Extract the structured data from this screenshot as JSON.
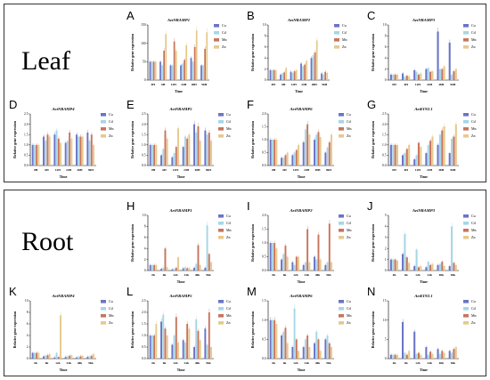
{
  "sections": [
    {
      "label": "Leaf"
    },
    {
      "label": "Root"
    }
  ],
  "legend": {
    "items": [
      "Cu",
      "Cd",
      "Mn",
      "Zn"
    ],
    "colors": [
      "#6a74c6",
      "#a6d6e6",
      "#c8755c",
      "#e6c98e"
    ]
  },
  "chart_data": [
    {
      "letter": "A",
      "type": "bar",
      "title": "AetNRAMP1",
      "ylabel": "Relative gene expression",
      "xlabel": "Time",
      "categories": [
        "0H",
        "6H",
        "12H",
        "24H",
        "48H",
        "96H"
      ],
      "ylim": [
        0,
        150
      ],
      "yticks": [
        0,
        50,
        100,
        150
      ],
      "series": [
        {
          "name": "Cu",
          "values": [
            50,
            50,
            40,
            40,
            60,
            40
          ]
        },
        {
          "name": "Cd",
          "values": [
            50,
            40,
            40,
            45,
            50,
            40
          ]
        },
        {
          "name": "Mn",
          "values": [
            50,
            80,
            105,
            55,
            90,
            85
          ]
        },
        {
          "name": "Zn",
          "values": [
            50,
            125,
            80,
            95,
            135,
            130
          ]
        }
      ]
    },
    {
      "letter": "B",
      "type": "bar",
      "title": "AetNRAMP2",
      "ylabel": "Relative gene expression",
      "xlabel": "Time",
      "categories": [
        "0H",
        "6H",
        "12H",
        "24H",
        "48H",
        "96H"
      ],
      "ylim": [
        0,
        10
      ],
      "yticks": [
        0,
        2,
        4,
        6,
        8,
        10
      ],
      "series": [
        {
          "name": "Cu",
          "values": [
            1.8,
            1.0,
            1.5,
            3.0,
            4.0,
            1.2
          ]
        },
        {
          "name": "Cd",
          "values": [
            1.8,
            1.2,
            1.3,
            2.5,
            4.5,
            1.0
          ]
        },
        {
          "name": "Mn",
          "values": [
            1.8,
            1.4,
            1.6,
            2.8,
            5.0,
            1.5
          ]
        },
        {
          "name": "Zn",
          "values": [
            1.8,
            2.2,
            1.8,
            3.5,
            7.2,
            1.3
          ]
        }
      ]
    },
    {
      "letter": "C",
      "type": "bar",
      "title": "AetNRAMP3",
      "ylabel": "Relative gene expression",
      "xlabel": "Time",
      "categories": [
        "0H",
        "6H",
        "12H",
        "24H",
        "48H",
        "96H"
      ],
      "ylim": [
        0,
        10
      ],
      "yticks": [
        0,
        2,
        4,
        6,
        8,
        10
      ],
      "series": [
        {
          "name": "Cu",
          "values": [
            1.0,
            1.2,
            1.8,
            2.0,
            8.8,
            6.8
          ]
        },
        {
          "name": "Cd",
          "values": [
            1.0,
            0.6,
            1.5,
            2.2,
            2.0,
            1.0
          ]
        },
        {
          "name": "Mn",
          "values": [
            1.0,
            0.8,
            1.0,
            1.5,
            2.0,
            1.6
          ]
        },
        {
          "name": "Zn",
          "values": [
            1.0,
            0.7,
            1.2,
            1.6,
            2.5,
            2.0
          ]
        }
      ]
    },
    {
      "letter": "D",
      "type": "bar",
      "title": "AetNRAMP4",
      "ylabel": "Relative gene expression",
      "xlabel": "Time",
      "categories": [
        "0H",
        "6H",
        "12H",
        "24H",
        "48H",
        "96H"
      ],
      "ylim": [
        0,
        2.5
      ],
      "yticks": [
        0.0,
        0.5,
        1.0,
        1.5,
        2.0,
        2.5
      ],
      "series": [
        {
          "name": "Cu",
          "values": [
            1.0,
            1.4,
            1.5,
            1.1,
            1.5,
            1.6
          ]
        },
        {
          "name": "Cd",
          "values": [
            1.0,
            1.2,
            1.7,
            1.2,
            1.4,
            1.2
          ]
        },
        {
          "name": "Mn",
          "values": [
            1.0,
            1.5,
            1.3,
            1.6,
            1.4,
            1.5
          ]
        },
        {
          "name": "Zn",
          "values": [
            1.0,
            1.4,
            1.1,
            1.3,
            1.4,
            1.0
          ]
        }
      ]
    },
    {
      "letter": "E",
      "type": "bar",
      "title": "AetNRAMP5",
      "ylabel": "Relative gene expression",
      "xlabel": "Time",
      "categories": [
        "0H",
        "6H",
        "12H",
        "24H",
        "48H",
        "96H"
      ],
      "ylim": [
        0,
        2.5
      ],
      "yticks": [
        0.0,
        0.5,
        1.0,
        1.5,
        2.0,
        2.5
      ],
      "series": [
        {
          "name": "Cu",
          "values": [
            1.0,
            0.5,
            0.4,
            0.9,
            2.0,
            1.7
          ]
        },
        {
          "name": "Cd",
          "values": [
            1.0,
            0.8,
            0.6,
            1.4,
            1.6,
            1.5
          ]
        },
        {
          "name": "Mn",
          "values": [
            1.0,
            1.7,
            0.9,
            1.3,
            1.9,
            1.6
          ]
        },
        {
          "name": "Zn",
          "values": [
            1.0,
            1.3,
            1.8,
            1.5,
            1.2,
            1.2
          ]
        }
      ]
    },
    {
      "letter": "F",
      "type": "bar",
      "title": "AetNRAMP6",
      "ylabel": "Relative gene expression",
      "xlabel": "Time",
      "categories": [
        "0H",
        "6H",
        "12H",
        "24H",
        "48H",
        "96H"
      ],
      "ylim": [
        0,
        2.0
      ],
      "yticks": [
        0.0,
        0.5,
        1.0,
        1.5,
        2.0
      ],
      "series": [
        {
          "name": "Cu",
          "values": [
            1.0,
            0.3,
            0.4,
            0.9,
            1.0,
            0.5
          ]
        },
        {
          "name": "Cd",
          "values": [
            1.0,
            0.3,
            0.5,
            1.4,
            1.2,
            0.7
          ]
        },
        {
          "name": "Mn",
          "values": [
            1.0,
            0.4,
            0.6,
            1.6,
            1.3,
            0.9
          ]
        },
        {
          "name": "Zn",
          "values": [
            1.0,
            0.5,
            0.8,
            1.2,
            1.1,
            1.2
          ]
        }
      ]
    },
    {
      "letter": "G",
      "type": "bar",
      "title": "AetEIN2.1",
      "ylabel": "Relative gene expression",
      "xlabel": "Time",
      "categories": [
        "0H",
        "6H",
        "12H",
        "24H",
        "48H",
        "96H"
      ],
      "ylim": [
        0,
        2.5
      ],
      "yticks": [
        0.0,
        0.5,
        1.0,
        1.5,
        2.0,
        2.5
      ],
      "series": [
        {
          "name": "Cu",
          "values": [
            1.0,
            0.5,
            0.3,
            0.6,
            1.0,
            0.6
          ]
        },
        {
          "name": "Cd",
          "values": [
            1.0,
            0.6,
            0.5,
            1.0,
            1.5,
            1.3
          ]
        },
        {
          "name": "Mn",
          "values": [
            1.0,
            0.8,
            1.1,
            1.2,
            1.7,
            1.4
          ]
        },
        {
          "name": "Zn",
          "values": [
            1.0,
            1.0,
            0.9,
            1.4,
            1.9,
            2.0
          ]
        }
      ]
    },
    {
      "letter": "H",
      "type": "bar",
      "title": "AetNRAMP1",
      "ylabel": "Relative gene expression",
      "xlabel": "Time",
      "categories": [
        "0h",
        "6h",
        "12h",
        "24h",
        "48h",
        "96h"
      ],
      "ylim": [
        0,
        10
      ],
      "yticks": [
        0,
        2,
        4,
        6,
        8,
        10
      ],
      "series": [
        {
          "name": "Cu",
          "values": [
            1.0,
            0.3,
            0.2,
            0.4,
            0.5,
            0.5
          ]
        },
        {
          "name": "Cd",
          "values": [
            1.0,
            0.5,
            0.3,
            0.6,
            1.2,
            8.2
          ]
        },
        {
          "name": "Mn",
          "values": [
            1.0,
            4.0,
            0.5,
            0.4,
            4.6,
            3.0
          ]
        },
        {
          "name": "Zn",
          "values": [
            1.0,
            0.6,
            2.4,
            0.5,
            1.0,
            1.5
          ]
        }
      ]
    },
    {
      "letter": "I",
      "type": "bar",
      "title": "AetNRAMP2",
      "ylabel": "Relative gene expression",
      "xlabel": "Time",
      "categories": [
        "0h",
        "6h",
        "12h",
        "24h",
        "48h",
        "96h"
      ],
      "ylim": [
        0,
        2.0
      ],
      "yticks": [
        0.0,
        0.5,
        1.0,
        1.5,
        2.0
      ],
      "series": [
        {
          "name": "Cu",
          "values": [
            1.0,
            0.4,
            0.3,
            0.2,
            0.5,
            0.2
          ]
        },
        {
          "name": "Cd",
          "values": [
            1.0,
            0.6,
            0.2,
            0.3,
            0.4,
            0.3
          ]
        },
        {
          "name": "Mn",
          "values": [
            1.0,
            0.9,
            0.5,
            1.5,
            1.3,
            1.7
          ]
        },
        {
          "name": "Zn",
          "values": [
            0.8,
            0.5,
            0.5,
            0.3,
            0.4,
            0.3
          ]
        }
      ]
    },
    {
      "letter": "J",
      "type": "bar",
      "title": "AetNRAMP3",
      "ylabel": "Relative gene expression",
      "xlabel": "Time",
      "categories": [
        "0h",
        "6h",
        "12h",
        "24h",
        "48h",
        "96h"
      ],
      "ylim": [
        0,
        5
      ],
      "yticks": [
        0,
        1,
        2,
        3,
        4,
        5
      ],
      "series": [
        {
          "name": "Cu",
          "values": [
            1.0,
            1.5,
            0.4,
            0.3,
            0.5,
            0.4
          ]
        },
        {
          "name": "Cd",
          "values": [
            1.0,
            3.3,
            1.9,
            0.8,
            0.6,
            4.0
          ]
        },
        {
          "name": "Mn",
          "values": [
            1.0,
            1.2,
            0.3,
            0.5,
            0.8,
            0.7
          ]
        },
        {
          "name": "Zn",
          "values": [
            0.9,
            0.7,
            0.4,
            0.6,
            0.4,
            0.5
          ]
        }
      ]
    },
    {
      "letter": "K",
      "type": "bar",
      "title": "AetNRAMP4",
      "ylabel": "Relative gene expression",
      "xlabel": "Time",
      "categories": [
        "0h",
        "6h",
        "12h",
        "24h",
        "48h",
        "96h"
      ],
      "ylim": [
        0,
        10
      ],
      "yticks": [
        0,
        2,
        4,
        6,
        8,
        10
      ],
      "series": [
        {
          "name": "Cu",
          "values": [
            1.0,
            0.4,
            0.2,
            0.3,
            0.2,
            0.3
          ]
        },
        {
          "name": "Cd",
          "values": [
            1.0,
            0.5,
            1.0,
            0.4,
            0.3,
            0.4
          ]
        },
        {
          "name": "Mn",
          "values": [
            1.0,
            0.6,
            0.3,
            0.5,
            0.4,
            0.5
          ]
        },
        {
          "name": "Zn",
          "values": [
            1.0,
            0.8,
            7.5,
            0.6,
            0.5,
            0.8
          ]
        }
      ]
    },
    {
      "letter": "L",
      "type": "bar",
      "title": "AetNRAMP5",
      "ylabel": "Relative gene expression",
      "xlabel": "Time",
      "categories": [
        "0h",
        "6h",
        "12h",
        "24h",
        "48h",
        "96h"
      ],
      "ylim": [
        0,
        2.5
      ],
      "yticks": [
        0.0,
        0.5,
        1.0,
        1.5,
        2.0,
        2.5
      ],
      "series": [
        {
          "name": "Cu",
          "values": [
            1.0,
            1.6,
            0.6,
            0.8,
            0.5,
            1.3
          ]
        },
        {
          "name": "Cd",
          "values": [
            1.0,
            1.9,
            1.0,
            0.7,
            1.7,
            0.6
          ]
        },
        {
          "name": "Mn",
          "values": [
            1.0,
            1.3,
            1.8,
            1.5,
            1.2,
            2.0
          ]
        },
        {
          "name": "Zn",
          "values": [
            1.5,
            1.0,
            0.7,
            1.3,
            0.8,
            0.5
          ]
        }
      ]
    },
    {
      "letter": "M",
      "type": "bar",
      "title": "AetNRAMP6",
      "ylabel": "Relative gene expression",
      "xlabel": "Time",
      "categories": [
        "0h",
        "6h",
        "12h",
        "24h",
        "48h",
        "96h"
      ],
      "ylim": [
        0,
        1.5
      ],
      "yticks": [
        0.0,
        0.5,
        1.0,
        1.5
      ],
      "series": [
        {
          "name": "Cu",
          "values": [
            1.0,
            0.6,
            0.3,
            0.3,
            0.4,
            0.5
          ]
        },
        {
          "name": "Cd",
          "values": [
            1.0,
            0.7,
            1.3,
            0.5,
            0.7,
            0.6
          ]
        },
        {
          "name": "Mn",
          "values": [
            1.0,
            0.8,
            0.5,
            0.6,
            0.5,
            0.4
          ]
        },
        {
          "name": "Zn",
          "values": [
            0.9,
            0.4,
            0.2,
            0.3,
            0.2,
            0.3
          ]
        }
      ]
    },
    {
      "letter": "N",
      "type": "bar",
      "title": "AetEIN2.1",
      "ylabel": "Relative gene expression",
      "xlabel": "Time",
      "categories": [
        "0h",
        "6h",
        "12h",
        "24h",
        "48h",
        "96h"
      ],
      "ylim": [
        0,
        15
      ],
      "yticks": [
        0,
        5,
        10,
        15
      ],
      "series": [
        {
          "name": "Cu",
          "values": [
            1.0,
            9.5,
            7.0,
            3.0,
            2.5,
            2.0
          ]
        },
        {
          "name": "Cd",
          "values": [
            1.0,
            1.5,
            1.2,
            1.0,
            1.2,
            1.5
          ]
        },
        {
          "name": "Mn",
          "values": [
            1.0,
            1.0,
            1.5,
            1.8,
            2.0,
            2.5
          ]
        },
        {
          "name": "Zn",
          "values": [
            1.0,
            2.0,
            1.0,
            1.2,
            1.5,
            3.0
          ]
        }
      ]
    }
  ]
}
